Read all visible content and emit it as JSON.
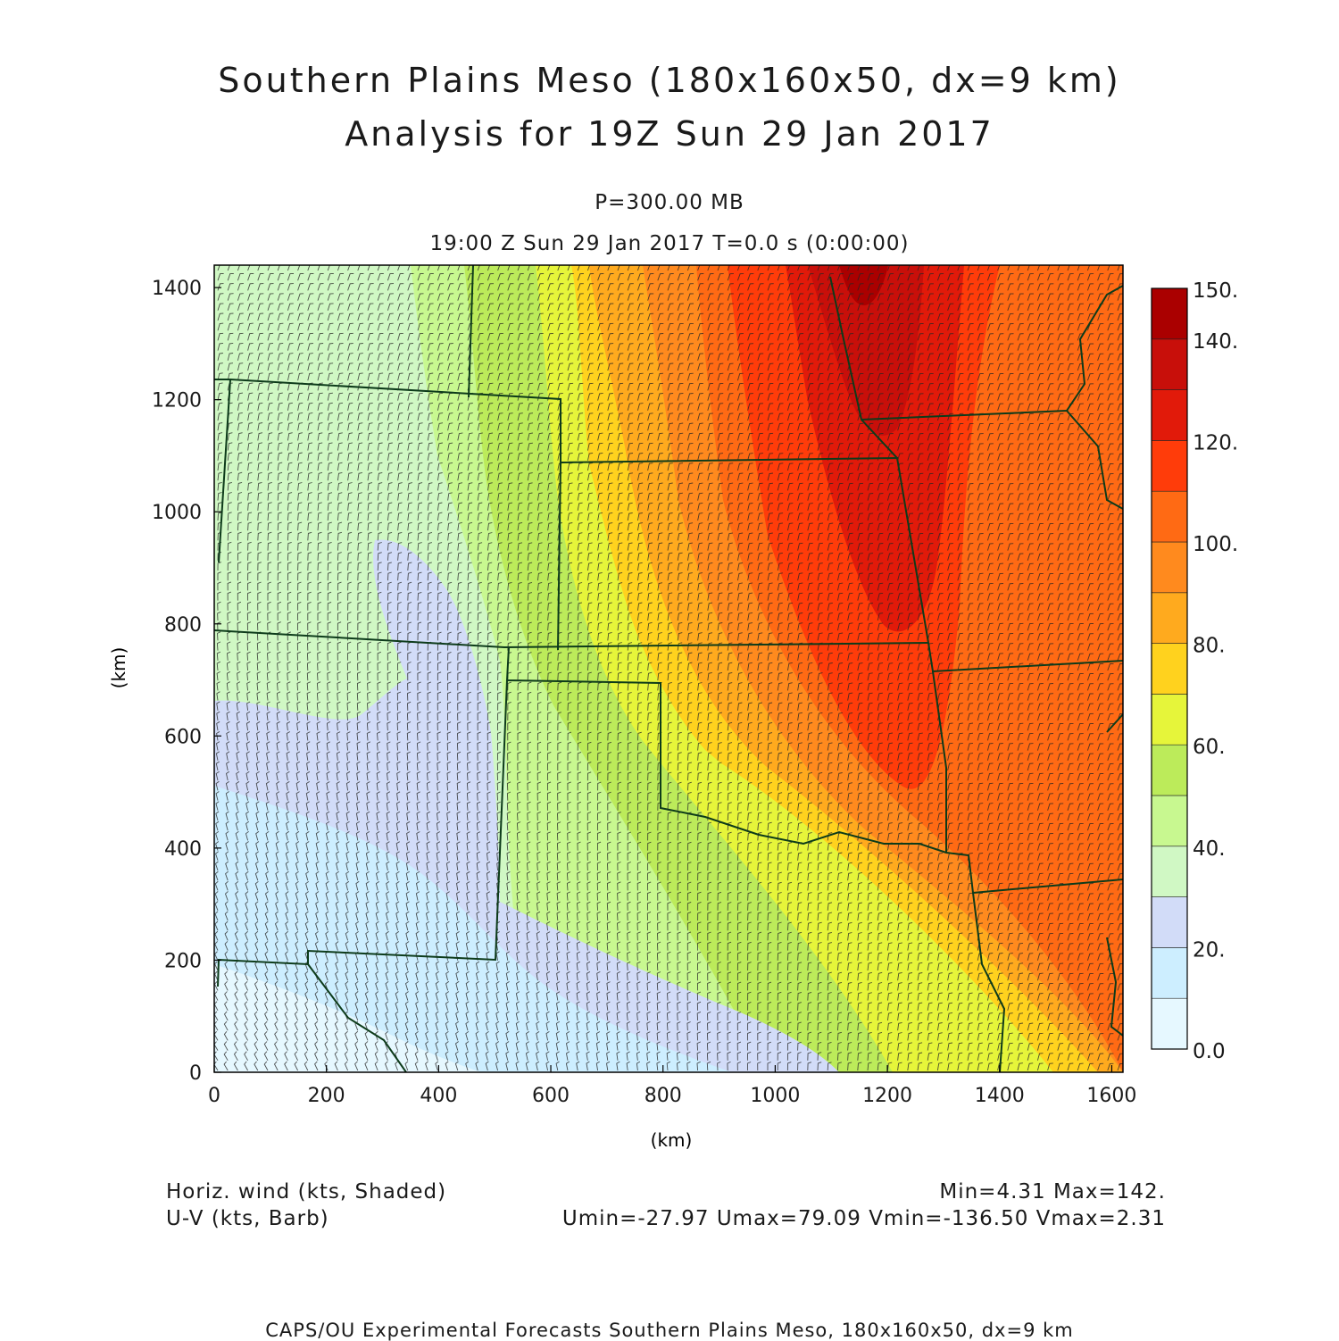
{
  "header": {
    "title_line1": "Southern Plains Meso (180x160x50, dx=9 km)",
    "title_line2": "Analysis for 19Z Sun 29 Jan 2017",
    "level": "P=300.00 MB",
    "valid_time": "19:00 Z Sun 29 Jan 2017    T=0.0 s (0:00:00)"
  },
  "axes": {
    "xlabel": "(km)",
    "ylabel": "(km)",
    "x_ticks": [
      "0",
      "200",
      "400",
      "600",
      "800",
      "1000",
      "1200",
      "1400",
      "1600"
    ],
    "y_ticks": [
      "0",
      "200",
      "400",
      "600",
      "800",
      "1000",
      "1200",
      "1400"
    ],
    "xlim": [
      0,
      1620
    ],
    "ylim": [
      0,
      1440
    ]
  },
  "colorbar": {
    "labels": [
      "150.",
      "140.",
      "120.",
      "100.",
      "80.",
      "60.",
      "40.",
      "20.",
      "0.0"
    ],
    "label_values": [
      150,
      140,
      120,
      100,
      80,
      60,
      40,
      20,
      0
    ],
    "levels": [
      0,
      10,
      20,
      30,
      40,
      50,
      60,
      70,
      80,
      90,
      100,
      110,
      120,
      130,
      140,
      150
    ],
    "colors": [
      "#e6f8ff",
      "#cdeeff",
      "#d2dcf8",
      "#d0f8c4",
      "#c8f890",
      "#bceb5a",
      "#e6f53a",
      "#ffd21e",
      "#ffaa1e",
      "#ff8a1e",
      "#ff6a14",
      "#ff3c0a",
      "#e11a0a",
      "#c80f0a",
      "#aa0000"
    ]
  },
  "legend_notes": {
    "left_line1": "Horiz. wind (kts, Shaded)",
    "left_line2": "U-V (kts, Barb)",
    "right_line1": "Min=4.31 Max=142.",
    "right_line2": "Umin=-27.97 Umax=79.09 Vmin=-136.50 Vmax=2.31"
  },
  "footer": "CAPS/OU Experimental Forecasts  Southern Plains Meso, 180x160x50, dx=9 km",
  "map_colors": {
    "border": "#0d3b1a",
    "barb": "#262626"
  }
}
